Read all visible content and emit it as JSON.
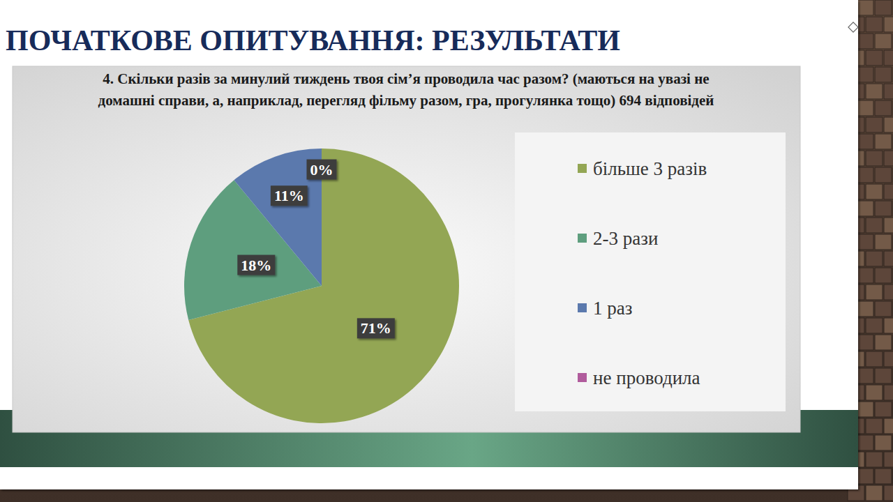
{
  "header": {
    "title": "ПОЧАТКОВЕ ОПИТУВАННЯ: РЕЗУЛЬТАТИ"
  },
  "chart_data": {
    "type": "pie",
    "title": "4. Скільки разів за минулий тиждень твоя сім’я проводила час разом? (маються на увазі не домашні справи, а, наприклад, перегляд фільму разом, гра, прогулянка тощо) 694 відповідей",
    "categories": [
      "більше 3 разів",
      "2-3 рази",
      "1 раз",
      "не проводила"
    ],
    "values": [
      71,
      18,
      11,
      0
    ],
    "value_labels": [
      "71%",
      "18%",
      "11%",
      "0%"
    ],
    "colors": [
      "#93a654",
      "#5e9e7e",
      "#5b79ad",
      "#b05b9c"
    ],
    "data_labels": true,
    "legend": "right"
  }
}
